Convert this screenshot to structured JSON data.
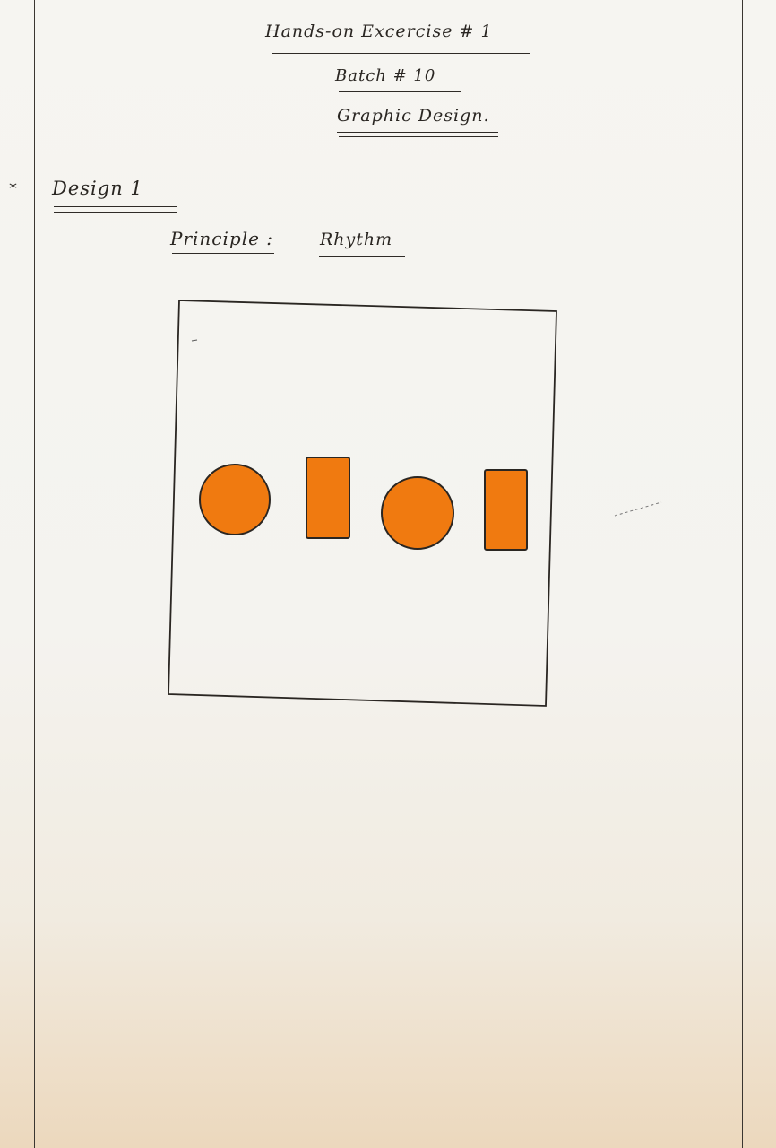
{
  "header": {
    "title": "Hands-on Excercise # 1",
    "batch": "Batch # 10",
    "subject": "Graphic Design."
  },
  "section": {
    "bullet": "*",
    "heading": "Design 1",
    "principle_label": "Principle :",
    "principle_value": "Rhythm"
  },
  "colors": {
    "shape_fill": "#f07a10",
    "ink": "#2a2622"
  },
  "drawing": {
    "shapes": [
      "circle",
      "rectangle",
      "circle",
      "rectangle"
    ]
  }
}
